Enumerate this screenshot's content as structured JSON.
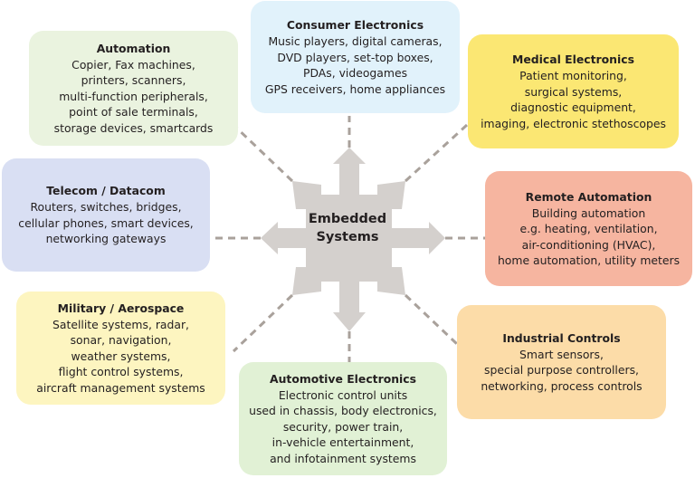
{
  "center": {
    "line1": "Embedded",
    "line2": "Systems",
    "color": "#d4d0cd"
  },
  "connector_color": "#a9a19b",
  "boxes": {
    "consumer": {
      "title": "Consumer Electronics",
      "lines": [
        "Music players,  digital cameras,",
        "DVD players, set-top boxes,",
        "PDAs, videogames",
        "GPS receivers, home appliances"
      ],
      "color": "#e1f2fb"
    },
    "automation": {
      "title": "Automation",
      "lines": [
        "Copier, Fax machines,",
        "printers, scanners,",
        "multi-function peripherals,",
        "point of sale terminals,",
        "storage devices, smartcards"
      ],
      "color": "#eaf3df"
    },
    "medical": {
      "title": "Medical Electronics",
      "lines": [
        "Patient monitoring,",
        "surgical systems,",
        "diagnostic equipment,",
        "imaging, electronic stethoscopes"
      ],
      "color": "#fbe773"
    },
    "telecom": {
      "title": "Telecom / Datacom",
      "lines": [
        "Routers, switches, bridges,",
        "cellular phones, smart devices,",
        "networking gateways"
      ],
      "color": "#d9dff3"
    },
    "remote": {
      "title": "Remote Automation",
      "lines": [
        "Building automation",
        "e.g. heating, ventilation,",
        "air-conditioning (HVAC),",
        "home automation, utility meters"
      ],
      "color": "#f6b5a0"
    },
    "military": {
      "title": "Military / Aerospace",
      "lines": [
        "Satellite systems, radar,",
        "sonar, navigation,",
        "weather systems,",
        "flight control systems,",
        "aircraft management systems"
      ],
      "color": "#fdf5c0"
    },
    "industrial": {
      "title": "Industrial Controls",
      "lines": [
        "Smart sensors,",
        "special purpose controllers,",
        "networking, process controls"
      ],
      "color": "#fcdca8"
    },
    "automotive": {
      "title": "Automotive Electronics",
      "lines": [
        "Electronic control units",
        "used in chassis, body electronics,",
        "security, power train,",
        "in-vehicle entertainment,",
        "and infotainment systems"
      ],
      "color": "#e1f1d5"
    }
  }
}
